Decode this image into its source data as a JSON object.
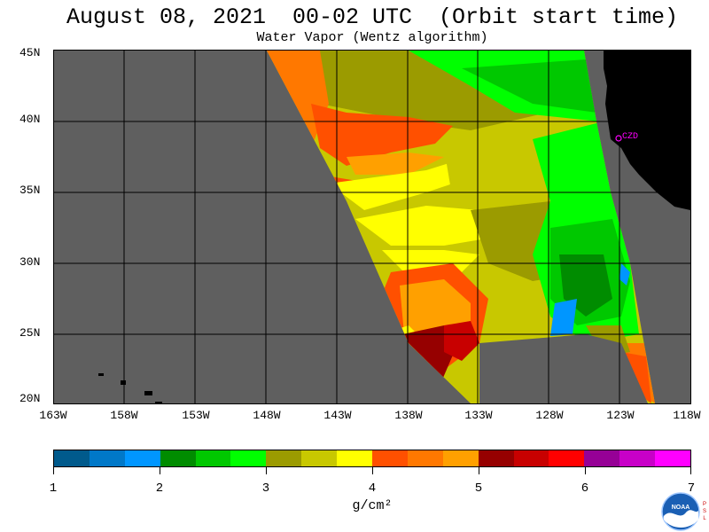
{
  "title": "August 08, 2021  00-02 UTC  (Orbit start time)",
  "subtitle": "Water Vapor (Wentz algorithm)",
  "map": {
    "lat_labels": [
      "45N",
      "40N",
      "35N",
      "30N",
      "25N",
      "20N"
    ],
    "lon_labels": [
      "163W",
      "158W",
      "153W",
      "148W",
      "143W",
      "138W",
      "133W",
      "128W",
      "123W",
      "118W"
    ],
    "station_label": "CZD",
    "station_color": "#ff00ff",
    "land_color": "#000000",
    "no_data_color": "#5f5f5f"
  },
  "colorbar": {
    "colors": [
      "#005a8c",
      "#0078c8",
      "#0096ff",
      "#008c00",
      "#00c800",
      "#00ff00",
      "#9b9b00",
      "#c8c800",
      "#ffff00",
      "#ff5000",
      "#ff7800",
      "#ffa000",
      "#960000",
      "#c80000",
      "#ff0000",
      "#960096",
      "#c800c8",
      "#ff00ff"
    ],
    "tick_labels": [
      "1",
      "2",
      "3",
      "4",
      "5",
      "6",
      "7"
    ],
    "units": "g/cm²"
  },
  "logo": {
    "text": "NOAA",
    "side_text": "PSL"
  }
}
